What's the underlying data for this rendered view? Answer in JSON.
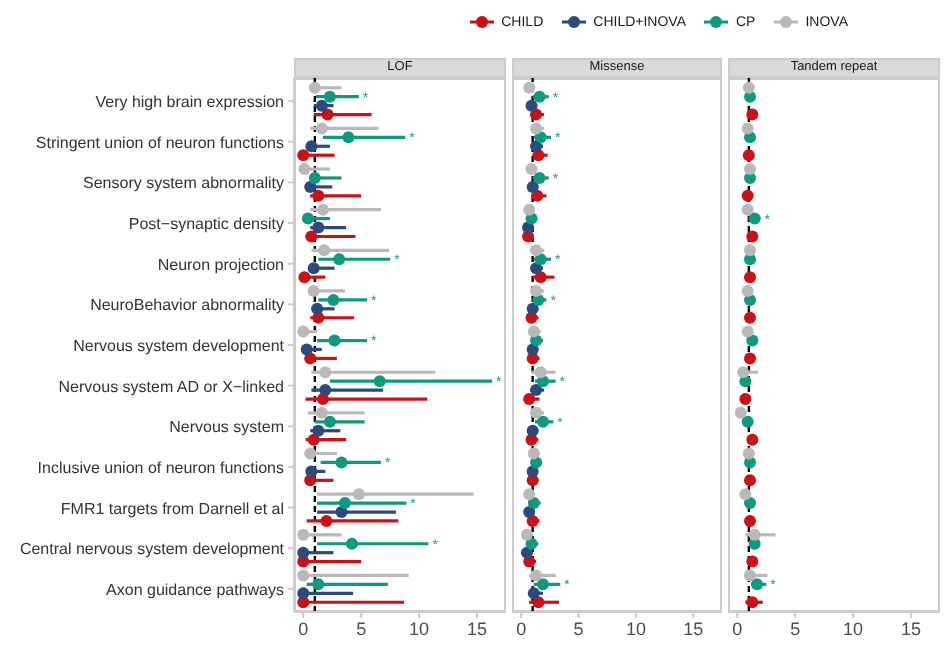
{
  "chart_data": [
    {
      "type": "scatter",
      "title": "LOF",
      "orientation": "horizontal",
      "marker": "circle",
      "legend": "top right",
      "categories": [
        "Very high brain expression",
        "Stringent union of neuron functions",
        "Sensory system abnormality",
        "Post−synaptic density",
        "Neuron projection",
        "NeuroBehavior abnormality",
        "Nervous system development",
        "Nervous system AD or X−linked",
        "Nervous system",
        "Inclusive union of neuron functions",
        "FMR1 targets from Darnell et al",
        "Central nervous system development",
        "Axon guidance pathways"
      ],
      "xlim": [
        -0.8,
        17.5
      ],
      "xticks": [
        0,
        5,
        10,
        15
      ],
      "ref_lines": [
        {
          "axis": "x",
          "value": 1,
          "color": "#000000",
          "line_style": "dashed"
        }
      ],
      "series": [
        {
          "name": "CHILD",
          "color": "#cc1016",
          "values": [
            2.1,
            0,
            1.3,
            0.7,
            0.1,
            1.3,
            0.6,
            1.7,
            0.9,
            0.6,
            2.0,
            0,
            0
          ],
          "errors": [
            [
              0.9,
              5.9
            ],
            [
              0,
              2.7
            ],
            [
              0.6,
              5.0
            ],
            [
              0.2,
              4.5
            ],
            [
              0.1,
              1.9
            ],
            [
              0.6,
              4.4
            ],
            [
              0.2,
              2.9
            ],
            [
              0.2,
              10.7
            ],
            [
              0.2,
              3.7
            ],
            [
              0.2,
              2.6
            ],
            [
              0.3,
              8.2
            ],
            [
              0,
              5.0
            ],
            [
              0,
              8.7
            ]
          ]
        },
        {
          "name": "CHILD+INOVA",
          "color": "#2d4a7c",
          "values": [
            1.6,
            0.7,
            0.6,
            1.3,
            0.9,
            1.2,
            0.3,
            1.9,
            1.3,
            0.7,
            3.3,
            0,
            0
          ],
          "errors": [
            [
              0.9,
              2.6
            ],
            [
              0.3,
              2.3
            ],
            [
              0.3,
              2.5
            ],
            [
              0.6,
              3.7
            ],
            [
              0.4,
              2.7
            ],
            [
              0.7,
              2.7
            ],
            [
              0.2,
              1.6
            ],
            [
              0.7,
              6.9
            ],
            [
              0.6,
              3.2
            ],
            [
              0.4,
              1.9
            ],
            [
              1.2,
              8.0
            ],
            [
              0,
              2.6
            ],
            [
              0,
              4.3
            ]
          ]
        },
        {
          "name": "CP",
          "color": "#0e9a7e",
          "values": [
            2.3,
            3.9,
            1.0,
            0.4,
            3.1,
            2.6,
            2.7,
            6.6,
            2.3,
            3.3,
            3.6,
            4.2,
            1.3
          ],
          "errors": [
            [
              1.1,
              4.8
            ],
            [
              1.7,
              8.8
            ],
            [
              0.6,
              3.3
            ],
            [
              0.3,
              2.3
            ],
            [
              1.3,
              7.5
            ],
            [
              1.3,
              5.5
            ],
            [
              1.2,
              5.5
            ],
            [
              2.3,
              16.3
            ],
            [
              1.0,
              5.3
            ],
            [
              1.5,
              6.7
            ],
            [
              1.2,
              8.9
            ],
            [
              1.2,
              10.8
            ],
            [
              0.3,
              7.3
            ]
          ]
        },
        {
          "name": "INOVA",
          "color": "#b9b9b9",
          "values": [
            1.0,
            1.6,
            0.1,
            1.7,
            1.8,
            0.9,
            0,
            1.9,
            1.6,
            0.6,
            4.8,
            0,
            0
          ],
          "errors": [
            [
              0.6,
              3.3
            ],
            [
              0.6,
              6.5
            ],
            [
              0.1,
              2.3
            ],
            [
              0.6,
              6.7
            ],
            [
              0.7,
              7.4
            ],
            [
              0.6,
              3.6
            ],
            [
              0,
              1.2
            ],
            [
              0.7,
              11.4
            ],
            [
              0.4,
              5.3
            ],
            [
              0.3,
              2.9
            ],
            [
              1.2,
              14.7
            ],
            [
              0,
              3.3
            ],
            [
              0,
              9.1
            ]
          ]
        }
      ],
      "annotations": [
        {
          "text": "*",
          "x": 4.8,
          "y": "Very high brain expression"
        },
        {
          "text": "*",
          "x": 8.8,
          "y": "Stringent union of neuron functions"
        },
        {
          "text": "*",
          "x": 7.5,
          "y": "Neuron projection"
        },
        {
          "text": "*",
          "x": 5.5,
          "y": "NeuroBehavior abnormality"
        },
        {
          "text": "*",
          "x": 5.5,
          "y": "Nervous system development"
        },
        {
          "text": "*",
          "x": 16.3,
          "y": "Nervous system AD or X−linked"
        },
        {
          "text": "*",
          "x": 6.7,
          "y": "Inclusive union of neuron functions"
        },
        {
          "text": "*",
          "x": 8.9,
          "y": "FMR1 targets from Darnell et al"
        },
        {
          "text": "*",
          "x": 10.8,
          "y": "Central nervous system development"
        }
      ]
    },
    {
      "type": "scatter",
      "title": "Missense",
      "orientation": "horizontal",
      "marker": "circle",
      "tick_labels": "x",
      "categories": [
        "Very high brain expression",
        "Stringent union of neuron functions",
        "Sensory system abnormality",
        "Post−synaptic density",
        "Neuron projection",
        "NeuroBehavior abnormality",
        "Nervous system development",
        "Nervous system AD or X−linked",
        "Nervous system",
        "Inclusive union of neuron functions",
        "FMR1 targets from Darnell et al",
        "Central nervous system development",
        "Axon guidance pathways"
      ],
      "xlim": [
        -0.8,
        17.5
      ],
      "xticks": [
        0,
        5,
        10,
        15
      ],
      "ref_lines": [
        {
          "axis": "x",
          "value": 1,
          "color": "#000000",
          "line_style": "dashed"
        }
      ],
      "series": [
        {
          "color": "#cc1016",
          "values": [
            1.3,
            1.5,
            1.4,
            0.6,
            1.7,
            0.9,
            1.0,
            0.7,
            0.9,
            1.0,
            1.0,
            0.7,
            1.5
          ],
          "errors": [
            [
              0.8,
              2.0
            ],
            [
              1.0,
              2.3
            ],
            [
              0.9,
              2.2
            ],
            [
              0.3,
              1.1
            ],
            [
              1.0,
              2.9
            ],
            [
              0.5,
              1.5
            ],
            [
              0.6,
              1.6
            ],
            [
              0.3,
              1.6
            ],
            [
              0.5,
              1.5
            ],
            [
              0.6,
              1.5
            ],
            [
              0.6,
              1.6
            ],
            [
              0.4,
              1.3
            ],
            [
              0.7,
              3.3
            ]
          ]
        },
        {
          "color": "#2d4a7c",
          "values": [
            0.9,
            1.3,
            1.0,
            0.6,
            1.3,
            1.0,
            1.0,
            1.3,
            1.0,
            1.0,
            0.7,
            0.5,
            1.1
          ],
          "errors": [
            [
              0.6,
              1.4
            ],
            [
              0.9,
              1.9
            ],
            [
              0.7,
              1.5
            ],
            [
              0.3,
              1.0
            ],
            [
              0.9,
              1.9
            ],
            [
              0.7,
              1.5
            ],
            [
              0.7,
              1.5
            ],
            [
              0.8,
              2.0
            ],
            [
              0.7,
              1.5
            ],
            [
              0.7,
              1.4
            ],
            [
              0.4,
              1.2
            ],
            [
              0.3,
              0.9
            ],
            [
              0.7,
              1.9
            ]
          ]
        },
        {
          "color": "#0e9a7e",
          "values": [
            1.6,
            1.7,
            1.6,
            0.9,
            1.7,
            1.5,
            1.3,
            1.9,
            1.9,
            1.3,
            1.1,
            0.9,
            1.9
          ],
          "errors": [
            [
              1.0,
              2.4
            ],
            [
              1.1,
              2.6
            ],
            [
              1.0,
              2.4
            ],
            [
              0.6,
              1.4
            ],
            [
              1.1,
              2.6
            ],
            [
              1.0,
              2.2
            ],
            [
              0.9,
              1.9
            ],
            [
              1.2,
              3.0
            ],
            [
              1.2,
              2.8
            ],
            [
              0.9,
              1.8
            ],
            [
              0.7,
              1.7
            ],
            [
              0.5,
              1.5
            ],
            [
              1.1,
              3.4
            ]
          ]
        },
        {
          "color": "#b9b9b9",
          "values": [
            0.7,
            1.3,
            0.9,
            0.7,
            1.3,
            1.3,
            1.1,
            1.7,
            1.3,
            1.1,
            0.7,
            0.5,
            1.3
          ],
          "errors": [
            [
              0.5,
              1.2
            ],
            [
              0.9,
              2.0
            ],
            [
              0.6,
              1.4
            ],
            [
              0.4,
              1.2
            ],
            [
              0.8,
              2.0
            ],
            [
              0.8,
              2.0
            ],
            [
              0.7,
              1.7
            ],
            [
              0.9,
              3.0
            ],
            [
              0.8,
              2.0
            ],
            [
              0.7,
              1.6
            ],
            [
              0.4,
              1.2
            ],
            [
              0.3,
              0.9
            ],
            [
              0.7,
              3.0
            ]
          ]
        }
      ],
      "annotations": [
        {
          "text": "*",
          "x": 2.4,
          "y": "Very high brain expression"
        },
        {
          "text": "*",
          "x": 2.6,
          "y": "Stringent union of neuron functions"
        },
        {
          "text": "*",
          "x": 2.4,
          "y": "Sensory system abnormality"
        },
        {
          "text": "*",
          "x": 2.6,
          "y": "Neuron projection"
        },
        {
          "text": "*",
          "x": 2.2,
          "y": "NeuroBehavior abnormality"
        },
        {
          "text": "*",
          "x": 3.0,
          "y": "Nervous system AD or X−linked"
        },
        {
          "text": "*",
          "x": 2.8,
          "y": "Nervous system"
        },
        {
          "text": "*",
          "x": 3.4,
          "y": "Axon guidance pathways"
        }
      ]
    },
    {
      "type": "scatter",
      "title": "Tandem repeat",
      "orientation": "horizontal",
      "marker": "circle",
      "tick_labels": "x",
      "categories": [
        "Very high brain expression",
        "Stringent union of neuron functions",
        "Sensory system abnormality",
        "Post−synaptic density",
        "Neuron projection",
        "NeuroBehavior abnormality",
        "Nervous system development",
        "Nervous system AD or X−linked",
        "Nervous system",
        "Inclusive union of neuron functions",
        "FMR1 targets from Darnell et al",
        "Central nervous system development",
        "Axon guidance pathways"
      ],
      "xlim": [
        -0.8,
        17.5
      ],
      "xticks": [
        0,
        5,
        10,
        15
      ],
      "ref_lines": [
        {
          "axis": "x",
          "value": 1,
          "color": "#000000",
          "line_style": "dashed"
        }
      ],
      "series": [
        {
          "color": "#cc1016",
          "values": [
            1.3,
            1.0,
            0.9,
            1.3,
            1.1,
            1.1,
            1.1,
            0.7,
            1.3,
            1.1,
            1.1,
            1.3,
            1.3
          ],
          "errors": [
            null,
            null,
            null,
            null,
            null,
            null,
            null,
            null,
            null,
            null,
            null,
            null,
            [
              0.7,
              2.2
            ]
          ]
        },
        {
          "color": "#2d4a7c",
          "values": [
            null,
            null,
            null,
            null,
            null,
            null,
            null,
            null,
            null,
            null,
            null,
            null,
            null
          ]
        },
        {
          "color": "#0e9a7e",
          "values": [
            1.1,
            1.1,
            1.1,
            1.5,
            1.1,
            1.1,
            1.3,
            0.7,
            0.9,
            1.1,
            1.1,
            1.5,
            1.7
          ],
          "errors": [
            null,
            null,
            null,
            [
              1.0,
              2.0
            ],
            null,
            null,
            null,
            null,
            null,
            null,
            null,
            null,
            [
              1.2,
              2.5
            ]
          ]
        },
        {
          "color": "#b9b9b9",
          "values": [
            1.0,
            0.9,
            1.1,
            0.9,
            1.1,
            0.9,
            0.9,
            0.5,
            0.3,
            1.0,
            0.7,
            1.5,
            1.1
          ],
          "errors": [
            null,
            null,
            [
              0.8,
              1.6
            ],
            null,
            null,
            null,
            null,
            [
              0.2,
              1.8
            ],
            null,
            null,
            null,
            [
              0.7,
              3.3
            ],
            [
              0.6,
              2.6
            ]
          ]
        }
      ],
      "annotations": [
        {
          "text": "*",
          "x": 2.0,
          "y": "Post−synaptic density"
        },
        {
          "text": "*",
          "x": 2.5,
          "y": "Axon guidance pathways"
        }
      ]
    }
  ]
}
